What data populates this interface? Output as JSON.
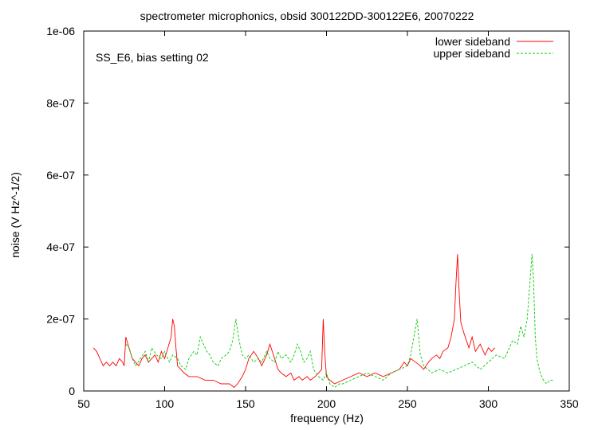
{
  "chart_data": {
    "type": "line",
    "title": "spectrometer microphonics, obsid 300122DD-300122E6, 20070222",
    "annotation": "SS_E6, bias setting 02",
    "xlabel": "frequency (Hz)",
    "ylabel": "noise (V Hz^-1/2)",
    "xlim": [
      50,
      350
    ],
    "ylim": [
      0,
      1e-06
    ],
    "x_ticks": [
      50,
      100,
      150,
      200,
      250,
      300,
      350
    ],
    "x_tick_labels": [
      "50",
      "100",
      "150",
      "200",
      "250",
      "300",
      "350"
    ],
    "y_ticks": [
      0,
      2e-07,
      4e-07,
      6e-07,
      8e-07,
      1e-06
    ],
    "y_tick_labels": [
      "0",
      "2e-07",
      "4e-07",
      "6e-07",
      "8e-07",
      "1e-06"
    ],
    "grid": false,
    "legend_position": "top-right",
    "series": [
      {
        "name": "lower sideband",
        "color": "#ff0000",
        "style": "solid",
        "x": [
          56,
          58,
          60,
          62,
          64,
          66,
          68,
          70,
          72,
          74,
          75,
          76,
          78,
          80,
          82,
          84,
          86,
          88,
          90,
          92,
          94,
          96,
          98,
          100,
          102,
          104,
          105,
          106,
          107,
          108,
          110,
          112,
          115,
          120,
          125,
          130,
          135,
          140,
          143,
          145,
          148,
          150,
          152,
          155,
          158,
          160,
          163,
          165,
          168,
          170,
          172,
          175,
          178,
          180,
          183,
          185,
          188,
          190,
          193,
          195,
          197,
          198,
          199,
          200,
          202,
          205,
          210,
          215,
          220,
          225,
          230,
          235,
          240,
          245,
          248,
          250,
          252,
          255,
          258,
          260,
          263,
          265,
          268,
          270,
          272,
          275,
          277,
          279,
          280,
          281,
          282,
          283,
          285,
          288,
          290,
          292,
          295,
          298,
          300,
          302,
          304
        ],
        "y": [
          1.2e-07,
          1.1e-07,
          9e-08,
          7e-08,
          8e-08,
          7e-08,
          8e-08,
          7e-08,
          9e-08,
          8e-08,
          7e-08,
          1.5e-07,
          1.2e-07,
          9e-08,
          8e-08,
          7e-08,
          9e-08,
          1e-07,
          8e-08,
          9e-08,
          1e-07,
          8e-08,
          1.1e-07,
          9e-08,
          1.2e-07,
          1.5e-07,
          2e-07,
          1.8e-07,
          1.2e-07,
          7e-08,
          6e-08,
          5e-08,
          4e-08,
          4e-08,
          3e-08,
          3e-08,
          2e-08,
          2e-08,
          1e-08,
          2e-08,
          4e-08,
          6e-08,
          9e-08,
          1.1e-07,
          9e-08,
          7e-08,
          1e-07,
          1.3e-07,
          9e-08,
          6e-08,
          5e-08,
          4e-08,
          5e-08,
          3e-08,
          4e-08,
          3e-08,
          4e-08,
          3e-08,
          4e-08,
          5e-08,
          6e-08,
          2e-07,
          1e-07,
          4e-08,
          3e-08,
          2e-08,
          3e-08,
          4e-08,
          5e-08,
          4e-08,
          5e-08,
          4e-08,
          5e-08,
          6e-08,
          8e-08,
          7e-08,
          9e-08,
          8e-08,
          7e-08,
          6e-08,
          8e-08,
          9e-08,
          1e-07,
          9e-08,
          1.1e-07,
          1.2e-07,
          1.5e-07,
          2e-07,
          3e-07,
          3.8e-07,
          2.7e-07,
          1.9e-07,
          1.6e-07,
          1.2e-07,
          1.5e-07,
          1.1e-07,
          1.3e-07,
          1e-07,
          1.2e-07,
          1.1e-07,
          1.2e-07
        ]
      },
      {
        "name": "upper sideband",
        "color": "#00cc00",
        "style": "dashed",
        "x": [
          76,
          78,
          80,
          82,
          85,
          88,
          90,
          92,
          95,
          98,
          100,
          103,
          105,
          108,
          110,
          113,
          115,
          118,
          120,
          122,
          124,
          126,
          128,
          130,
          133,
          135,
          138,
          140,
          142,
          144,
          146,
          148,
          150,
          152,
          155,
          158,
          160,
          163,
          165,
          168,
          170,
          172,
          175,
          178,
          180,
          182,
          184,
          186,
          188,
          190,
          192,
          195,
          198,
          200,
          202,
          205,
          208,
          210,
          215,
          220,
          225,
          230,
          235,
          240,
          245,
          250,
          252,
          254,
          256,
          258,
          260,
          265,
          270,
          275,
          280,
          285,
          290,
          295,
          300,
          305,
          310,
          313,
          315,
          318,
          320,
          322,
          324,
          326,
          327,
          328,
          329,
          330,
          332,
          334,
          336,
          338,
          340
        ],
        "y": [
          1.3e-07,
          1.2e-07,
          9e-08,
          7e-08,
          9e-08,
          1.1e-07,
          8e-08,
          1.2e-07,
          1e-07,
          9e-08,
          1.1e-07,
          8e-08,
          1e-07,
          9e-08,
          7e-08,
          6e-08,
          9e-08,
          1.1e-07,
          1e-07,
          1.5e-07,
          1.3e-07,
          1.1e-07,
          1e-07,
          8e-08,
          7e-08,
          9e-08,
          1e-07,
          1.1e-07,
          1.4e-07,
          2e-07,
          1.4e-07,
          1e-07,
          9e-08,
          1e-07,
          8e-08,
          9e-08,
          8e-08,
          1.1e-07,
          9e-08,
          8e-08,
          1.1e-07,
          9e-08,
          1e-07,
          8e-08,
          1e-07,
          1.3e-07,
          1.1e-07,
          8e-08,
          9e-08,
          1.1e-07,
          6e-08,
          4e-08,
          3e-08,
          5e-08,
          2e-08,
          1e-08,
          2e-08,
          2e-08,
          3e-08,
          4e-08,
          5e-08,
          4e-08,
          3e-08,
          5e-08,
          6e-08,
          7e-08,
          1e-07,
          1.5e-07,
          2e-07,
          1e-07,
          7e-08,
          5e-08,
          6e-08,
          5e-08,
          6e-08,
          7e-08,
          8e-08,
          6e-08,
          8e-08,
          1e-07,
          9e-08,
          1.2e-07,
          1.4e-07,
          1.3e-07,
          1.8e-07,
          1.5e-07,
          2e-07,
          3.2e-07,
          3.8e-07,
          3e-07,
          1.5e-07,
          9e-08,
          5e-08,
          3e-08,
          2e-08,
          3e-08,
          3e-08
        ]
      }
    ]
  }
}
